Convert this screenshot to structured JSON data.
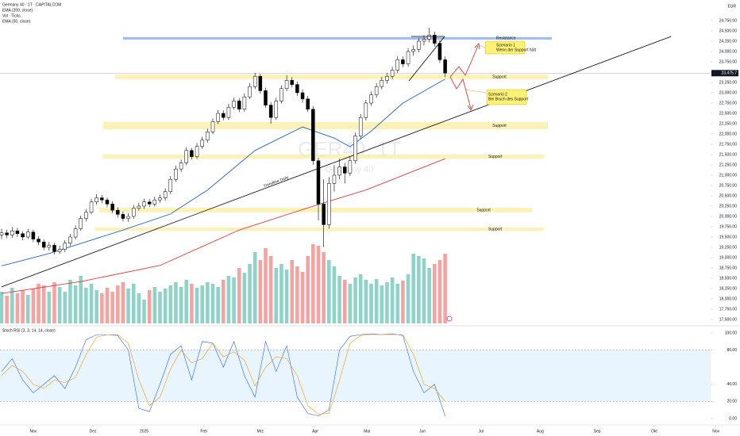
{
  "chart_data": {
    "type": "candlestick",
    "symbol": "Germany 40 · 1T · CAPITALCOM",
    "currency": "EUR",
    "watermark": [
      "GER40, 1T",
      "Germany 40"
    ],
    "xlim": [
      -0.3,
      139.85
    ],
    "xticks": [
      {
        "value": 6,
        "label": "Nov"
      },
      {
        "value": 17.3,
        "label": "Dez"
      },
      {
        "value": 27,
        "label": "2025"
      },
      {
        "value": 38.3,
        "label": "Feb"
      },
      {
        "value": 49,
        "label": "Mrz"
      },
      {
        "value": 59.4,
        "label": "Apr"
      },
      {
        "value": 69.2,
        "label": "Mai"
      },
      {
        "value": 79.7,
        "label": "Jun"
      },
      {
        "value": 90.8,
        "label": "Jul"
      },
      {
        "value": 102,
        "label": "Aug"
      },
      {
        "value": 112.8,
        "label": "Sep"
      },
      {
        "value": 123.6,
        "label": "Okt"
      },
      {
        "value": 135.3,
        "label": "Nov"
      }
    ],
    "ylim": [
      17365,
      25250
    ],
    "yticks": [
      {
        "value": 24750,
        "label": "24,750.00"
      },
      {
        "value": 24500,
        "label": "24,500.00"
      },
      {
        "value": 24250,
        "label": "24,250.00"
      },
      {
        "value": 24000,
        "label": "24,000.00"
      },
      {
        "value": 23750,
        "label": "23,750.00"
      },
      {
        "value": 23500,
        "label": "23,500.00"
      },
      {
        "value": 23250,
        "label": "23,250.00"
      },
      {
        "value": 23000,
        "label": "23,000.00"
      },
      {
        "value": 22750,
        "label": "22,750.00"
      },
      {
        "value": 22500,
        "label": "22,500.00"
      },
      {
        "value": 22250,
        "label": "22,250.00"
      },
      {
        "value": 22000,
        "label": "22,000.00"
      },
      {
        "value": 21750,
        "label": "21,750.00"
      },
      {
        "value": 21500,
        "label": "21,500.00"
      },
      {
        "value": 21250,
        "label": "21,250.00"
      },
      {
        "value": 21000,
        "label": "21,000.00"
      },
      {
        "value": 20750,
        "label": "20,750.00"
      },
      {
        "value": 20500,
        "label": "20,500.00"
      },
      {
        "value": 20250,
        "label": "20,250.00"
      },
      {
        "value": 20000,
        "label": "20,000.00"
      },
      {
        "value": 19750,
        "label": "19,750.00"
      },
      {
        "value": 19500,
        "label": "19,500.00"
      },
      {
        "value": 19250,
        "label": "19,250.00"
      },
      {
        "value": 19000,
        "label": "19,000.00"
      },
      {
        "value": 18750,
        "label": "18,750.00"
      },
      {
        "value": 18500,
        "label": "18,500.00"
      },
      {
        "value": 18250,
        "label": "18,250.00"
      },
      {
        "value": 18000,
        "label": "18,000.00"
      },
      {
        "value": 17750,
        "label": "17,750.00"
      },
      {
        "value": 17500,
        "label": "17,500.00"
      }
    ],
    "up_color": "#ffffff",
    "down_color": "#000000",
    "candles": [
      [
        19550,
        19700,
        19450,
        19600
      ],
      [
        19600,
        19680,
        19470,
        19550
      ],
      [
        19550,
        19740,
        19480,
        19650
      ],
      [
        19650,
        19720,
        19500,
        19580
      ],
      [
        19580,
        19640,
        19420,
        19500
      ],
      [
        19500,
        19700,
        19450,
        19620
      ],
      [
        19620,
        19680,
        19380,
        19450
      ],
      [
        19450,
        19520,
        19300,
        19380
      ],
      [
        19380,
        19440,
        19180,
        19250
      ],
      [
        19250,
        19380,
        19170,
        19300
      ],
      [
        19300,
        19360,
        19080,
        19150
      ],
      [
        19150,
        19290,
        19090,
        19200
      ],
      [
        19200,
        19420,
        19130,
        19350
      ],
      [
        19350,
        19570,
        19280,
        19500
      ],
      [
        19500,
        19780,
        19440,
        19700
      ],
      [
        19700,
        20020,
        19650,
        19950
      ],
      [
        19950,
        20180,
        19880,
        20100
      ],
      [
        20100,
        20430,
        20050,
        20350
      ],
      [
        20350,
        20540,
        20280,
        20450
      ],
      [
        20450,
        20520,
        20320,
        20400
      ],
      [
        20400,
        20460,
        20220,
        20300
      ],
      [
        20300,
        20370,
        20080,
        20150
      ],
      [
        20150,
        20220,
        19970,
        20050
      ],
      [
        20050,
        20120,
        19880,
        19950
      ],
      [
        19950,
        20080,
        19870,
        20000
      ],
      [
        20000,
        20280,
        19940,
        20200
      ],
      [
        20200,
        20330,
        20140,
        20250
      ],
      [
        20250,
        20430,
        20180,
        20350
      ],
      [
        20350,
        20420,
        20230,
        20300
      ],
      [
        20300,
        20480,
        20240,
        20400
      ],
      [
        20400,
        20530,
        20330,
        20450
      ],
      [
        20450,
        20680,
        20380,
        20600
      ],
      [
        20600,
        20980,
        20540,
        20900
      ],
      [
        20900,
        21230,
        20840,
        21150
      ],
      [
        21150,
        21380,
        21080,
        21300
      ],
      [
        21300,
        21680,
        21240,
        21600
      ],
      [
        21600,
        21660,
        21380,
        21450
      ],
      [
        21450,
        21780,
        21390,
        21700
      ],
      [
        21700,
        21930,
        21640,
        21850
      ],
      [
        21850,
        22130,
        21790,
        22050
      ],
      [
        22050,
        22380,
        21990,
        22300
      ],
      [
        22300,
        22580,
        22240,
        22500
      ],
      [
        22500,
        22570,
        22330,
        22400
      ],
      [
        22400,
        22730,
        22340,
        22650
      ],
      [
        22650,
        22880,
        22590,
        22800
      ],
      [
        22800,
        22870,
        22530,
        22600
      ],
      [
        22600,
        22980,
        22540,
        22900
      ],
      [
        22900,
        23230,
        22840,
        23150
      ],
      [
        23150,
        23480,
        23090,
        23400
      ],
      [
        23400,
        23460,
        22980,
        23050
      ],
      [
        23050,
        23120,
        22630,
        22700
      ],
      [
        22700,
        22770,
        22250,
        22400
      ],
      [
        22400,
        22880,
        22340,
        22800
      ],
      [
        22800,
        23180,
        22740,
        23100
      ],
      [
        23100,
        23420,
        23040,
        23300
      ],
      [
        23300,
        23380,
        23130,
        23200
      ],
      [
        23200,
        23270,
        22920,
        23000
      ],
      [
        23000,
        23080,
        22760,
        22850
      ],
      [
        22850,
        22920,
        22530,
        22600
      ],
      [
        22600,
        22680,
        21250,
        21350
      ],
      [
        21350,
        21420,
        19900,
        20300
      ],
      [
        20300,
        20900,
        19250,
        19800
      ],
      [
        19800,
        20950,
        19700,
        20800
      ],
      [
        20800,
        21250,
        20600,
        21000
      ],
      [
        21000,
        21400,
        20900,
        21200
      ],
      [
        21200,
        21300,
        20800,
        21050
      ],
      [
        21050,
        21450,
        20980,
        21350
      ],
      [
        21350,
        22030,
        21280,
        21950
      ],
      [
        21950,
        22480,
        21880,
        22400
      ],
      [
        22400,
        22830,
        22330,
        22750
      ],
      [
        22750,
        23030,
        22680,
        22950
      ],
      [
        22950,
        23230,
        22880,
        23150
      ],
      [
        23150,
        23380,
        23080,
        23300
      ],
      [
        23300,
        23480,
        23220,
        23400
      ],
      [
        23400,
        23630,
        23330,
        23550
      ],
      [
        23550,
        23880,
        23480,
        23800
      ],
      [
        23800,
        23880,
        23620,
        23700
      ],
      [
        23700,
        24080,
        23630,
        24000
      ],
      [
        24000,
        24150,
        23900,
        24050
      ],
      [
        24050,
        24330,
        23980,
        24250
      ],
      [
        24250,
        24400,
        24150,
        24300
      ],
      [
        24300,
        24580,
        24220,
        24400
      ],
      [
        24400,
        24480,
        24120,
        24200
      ],
      [
        24200,
        24280,
        23720,
        23800
      ],
      [
        23800,
        23880,
        23380,
        23475.7
      ]
    ],
    "last_price": {
      "value": 23475.7,
      "label": "23,475.7"
    },
    "volume": {
      "name": "Vol · Ticks",
      "up_color": "#8fd3c8",
      "down_color": "#f4a3a1",
      "values": [
        40,
        35,
        45,
        38,
        42,
        36,
        44,
        50,
        48,
        40,
        52,
        46,
        40,
        55,
        48,
        60,
        45,
        50,
        42,
        38,
        45,
        40,
        48,
        52,
        44,
        50,
        38,
        30,
        42,
        46,
        40,
        44,
        48,
        52,
        46,
        55,
        50,
        45,
        48,
        52,
        50,
        46,
        55,
        60,
        58,
        70,
        64,
        75,
        90,
        80,
        95,
        85,
        70,
        75,
        68,
        80,
        72,
        65,
        85,
        100,
        98,
        90,
        80,
        72,
        60,
        55,
        50,
        58,
        62,
        55,
        50,
        56,
        48,
        52,
        58,
        50,
        54,
        62,
        88,
        85,
        82,
        70,
        75,
        80,
        88
      ]
    },
    "lines": [
      {
        "name": "EMA (200, close)",
        "color": "#e0393e",
        "x": [
          0,
          15,
          30,
          45,
          60,
          69,
          84
        ],
        "values": [
          18130,
          18420,
          18810,
          19670,
          20290,
          20640,
          21400
        ]
      },
      {
        "name": "EMA (50, close)",
        "color": "#2962c8",
        "x": [
          0,
          9,
          23,
          32,
          39,
          48,
          57,
          63,
          66,
          70,
          76,
          84
        ],
        "values": [
          18800,
          19100,
          19670,
          20060,
          20640,
          21600,
          22170,
          21900,
          21690,
          22070,
          22750,
          23330
        ]
      }
    ],
    "zones": [
      {
        "label": "Resistance",
        "color": "#7fa6e6",
        "range": [
          24290,
          24350
        ],
        "x": [
          23,
          104.2
        ]
      },
      {
        "label": "Support",
        "color": "#fbeea0",
        "range": [
          23330,
          23440
        ],
        "x": [
          21.5,
          103.5
        ]
      },
      {
        "label": "Support",
        "color": "#fbeea0",
        "range": [
          22115,
          22290
        ],
        "x": [
          19.2,
          103.5
        ]
      },
      {
        "label": "Support",
        "color": "#fbeea0",
        "range": [
          21400,
          21500
        ],
        "x": [
          19.2,
          102.7
        ]
      },
      {
        "label": "Support",
        "color": "#fbeea0",
        "range": [
          20100,
          20210
        ],
        "x": [
          18.5,
          100.5
        ]
      },
      {
        "label": "Support",
        "color": "#fbeea0",
        "range": [
          19650,
          19730
        ],
        "x": [
          17.7,
          102.7
        ]
      }
    ],
    "trendline": {
      "label": "Trendline Daily",
      "color": "#000000",
      "x": [
        0,
        126.8
      ],
      "values": [
        18290,
        24365
      ]
    },
    "callouts": [
      {
        "lines": [
          "Szenario 1",
          "Wenn der Support hält"
        ]
      },
      {
        "lines": [
          "Szenario 2",
          "Bei Bruch des Support"
        ]
      }
    ],
    "stoch": {
      "title": "Stoch RSI (3, 3, 14, 14, close)",
      "ylim": [
        -6.5,
        108.3
      ],
      "band": [
        20,
        80
      ],
      "yticks": [
        {
          "value": 100,
          "label": "100.00"
        },
        {
          "value": 80,
          "label": "80.00"
        },
        {
          "value": 40,
          "label": "40.00"
        },
        {
          "value": 20,
          "label": "20.00"
        },
        {
          "value": 0,
          "label": "0.00"
        }
      ],
      "x": [
        0,
        2,
        4,
        6,
        8,
        10,
        12,
        14,
        16,
        18,
        20,
        22,
        24,
        26,
        28,
        30,
        32,
        34,
        36,
        38,
        40,
        42,
        44,
        46,
        48,
        50,
        52,
        54,
        56,
        58,
        60,
        62,
        64,
        66,
        68,
        70,
        72,
        74,
        76,
        78,
        80,
        82,
        84
      ],
      "series": [
        {
          "color": "#2962ff",
          "values": [
            55,
            70,
            45,
            30,
            40,
            50,
            35,
            60,
            92,
            98,
            98,
            97,
            80,
            12,
            8,
            40,
            75,
            85,
            45,
            90,
            88,
            60,
            90,
            50,
            25,
            90,
            55,
            85,
            25,
            6,
            3,
            10,
            80,
            96,
            98,
            99,
            98,
            99,
            97,
            55,
            30,
            40,
            3
          ]
        },
        {
          "color": "#ff9800",
          "values": [
            50,
            62,
            55,
            40,
            35,
            45,
            42,
            48,
            75,
            95,
            98,
            98,
            88,
            45,
            15,
            25,
            58,
            80,
            65,
            70,
            88,
            72,
            78,
            68,
            38,
            60,
            72,
            70,
            50,
            15,
            5,
            6,
            45,
            88,
            97,
            98,
            98,
            98,
            98,
            75,
            40,
            35,
            20
          ]
        }
      ]
    }
  }
}
